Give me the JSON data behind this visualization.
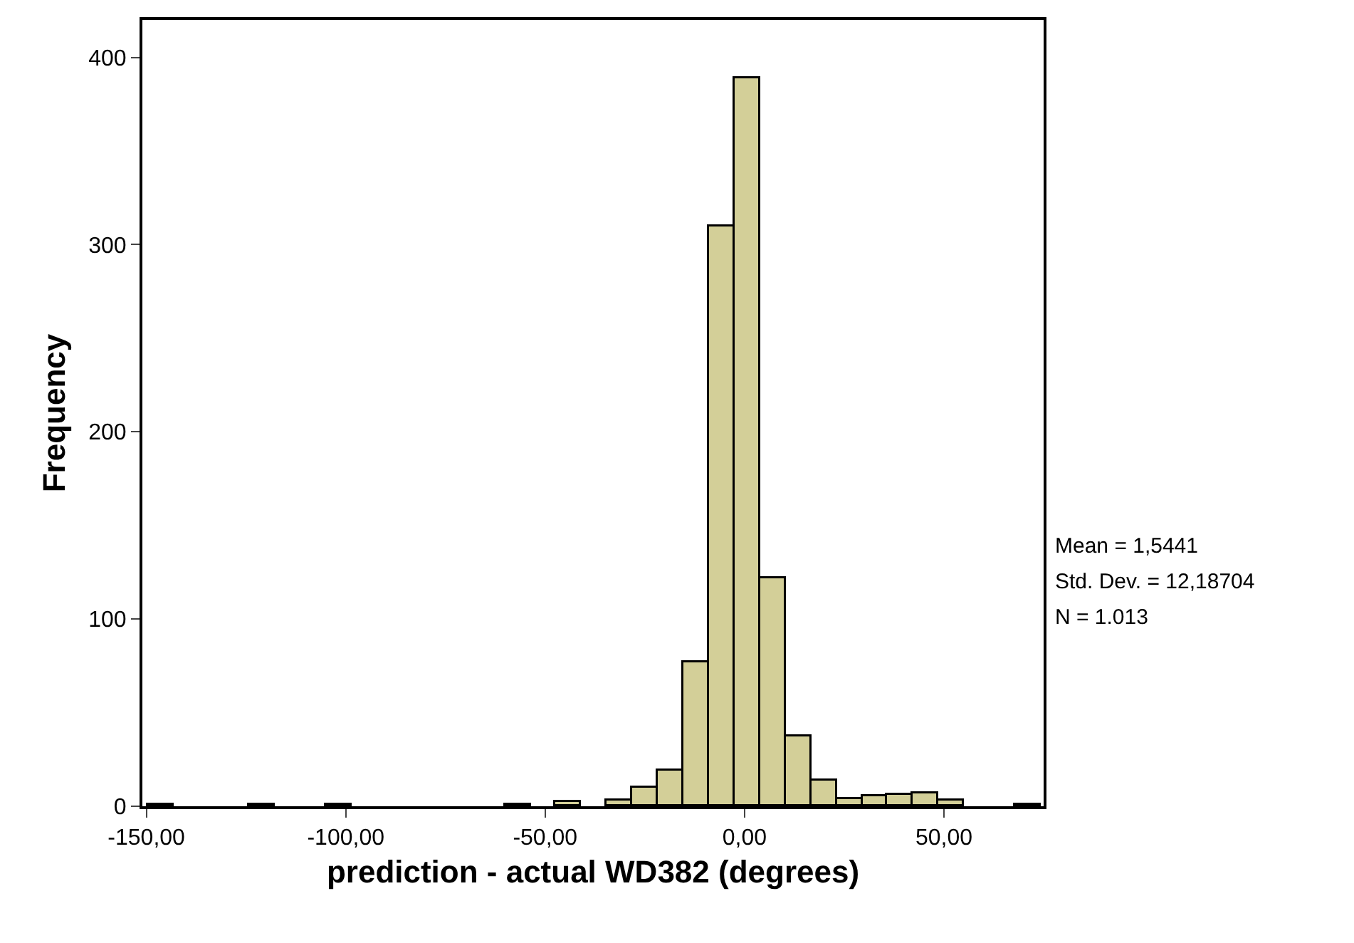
{
  "chart_data": {
    "type": "histogram",
    "xlabel": "prediction - actual WD382 (degrees)",
    "ylabel": "Frequency",
    "color": "#d3cf98",
    "bins": [
      -149.7,
      -143.3,
      -136.9,
      -130.5,
      -124.1,
      -117.7,
      -111.3,
      -104.9,
      -98.5,
      -92.1,
      -85.7,
      -79.3,
      -72.9,
      -66.5,
      -60.1,
      -53.7,
      -47.3,
      -40.9,
      -34.5,
      -28.1,
      -21.7,
      -15.3,
      -8.9,
      -2.5,
      3.9,
      10.3,
      16.7,
      23.1,
      29.5,
      35.9,
      42.3,
      48.7,
      55.1,
      61.5,
      67.9,
      74.3
    ],
    "values": [
      1,
      0,
      0,
      0,
      1,
      0,
      0,
      1,
      0,
      0,
      0,
      0,
      0,
      0,
      1,
      0,
      2,
      0,
      3,
      10,
      19,
      77,
      310,
      389,
      122,
      37,
      14,
      4,
      5,
      6,
      7,
      3,
      0,
      0,
      1
    ],
    "xlim": [
      -151,
      75
    ],
    "ylim": [
      0,
      420
    ],
    "xticks": [
      {
        "value": -150,
        "label": "-150,00"
      },
      {
        "value": -100,
        "label": "-100,00"
      },
      {
        "value": -50,
        "label": "-50,00"
      },
      {
        "value": 0,
        "label": "0,00"
      },
      {
        "value": 50,
        "label": "50,00"
      }
    ],
    "yticks": [
      0,
      100,
      200,
      300,
      400
    ],
    "annotations": [
      "Mean = 1,5441",
      "Std. Dev. = 12,18704",
      "N = 1.013"
    ]
  }
}
